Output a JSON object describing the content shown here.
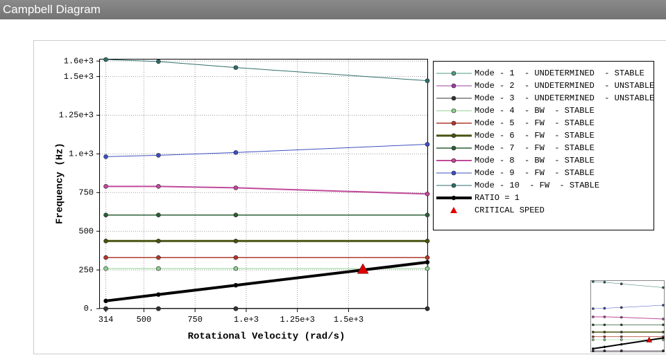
{
  "chart_data": {
    "type": "line",
    "title": "Campbell Diagram",
    "x_label": "Rotational Velocity (rad/s)",
    "y_label": "Frequency (Hz)",
    "x": [
      314,
      571,
      949,
      1885
    ],
    "xlim": [
      285,
      1885
    ],
    "ylim": [
      0,
      1610
    ],
    "xticks": [
      314,
      500,
      750,
      {
        "value": 1000,
        "label": "1.e+3"
      },
      {
        "value": 1250,
        "label": "1.25e+3"
      },
      {
        "value": 1500,
        "label": "1.5e+3"
      }
    ],
    "yticks": [
      {
        "value": 0,
        "label": "0."
      },
      250,
      500,
      750,
      {
        "value": 1000,
        "label": "1.e+3"
      },
      {
        "value": 1250,
        "label": "1.25e+3"
      },
      {
        "value": 1500,
        "label": "1.5e+3"
      },
      {
        "value": 1600,
        "label": "1.6e+3"
      }
    ],
    "grid": true,
    "legend": "right",
    "series": [
      {
        "name": "Mode - 1  - UNDETERMINED  - STABLE",
        "color": "#4c9a84",
        "linewidth": 1,
        "values": [
          0,
          0,
          0,
          0
        ]
      },
      {
        "name": "Mode - 2  - UNDETERMINED  - UNSTABLE",
        "color": "#9b3fa0",
        "linewidth": 1,
        "values": [
          0,
          0,
          0,
          0
        ]
      },
      {
        "name": "Mode - 3  - UNDETERMINED  - UNSTABLE",
        "color": "#333333",
        "linewidth": 1,
        "values": [
          0,
          0,
          0,
          0
        ]
      },
      {
        "name": "Mode - 4  - BW  - STABLE",
        "color": "#8fd08f",
        "linewidth": 1,
        "values": [
          259,
          259,
          259,
          259
        ]
      },
      {
        "name": "Mode - 5  - FW  - STABLE",
        "color": "#b03a2e",
        "linewidth": 1.5,
        "values": [
          330,
          330,
          330,
          330
        ]
      },
      {
        "name": "Mode - 6  - FW  - STABLE",
        "color": "#4a5210",
        "linewidth": 3,
        "values": [
          437,
          437,
          437,
          437
        ]
      },
      {
        "name": "Mode - 7  - FW  - STABLE",
        "color": "#2d5e35",
        "linewidth": 1.5,
        "values": [
          605,
          605,
          605,
          605
        ]
      },
      {
        "name": "Mode - 8  - BW  - STABLE",
        "color": "#c04a9a",
        "linewidth": 2,
        "values": [
          790,
          790,
          781,
          741
        ]
      },
      {
        "name": "Mode - 9  - FW  - STABLE",
        "color": "#3e4fc0",
        "linewidth": 1,
        "values": [
          982,
          991,
          1009,
          1062
        ]
      },
      {
        "name": "Mode - 10  - FW  - STABLE",
        "color": "#2f6e6a",
        "linewidth": 1,
        "values": [
          1610,
          1597,
          1558,
          1473
        ]
      },
      {
        "name": "RATIO = 1",
        "color": "#000000",
        "linewidth": 4,
        "values": [
          50,
          91,
          151,
          300
        ]
      }
    ],
    "critical_speed": {
      "name": "CRITICAL SPEED",
      "color": "#e00000",
      "x": [
        1570
      ],
      "values": [
        255
      ]
    }
  }
}
